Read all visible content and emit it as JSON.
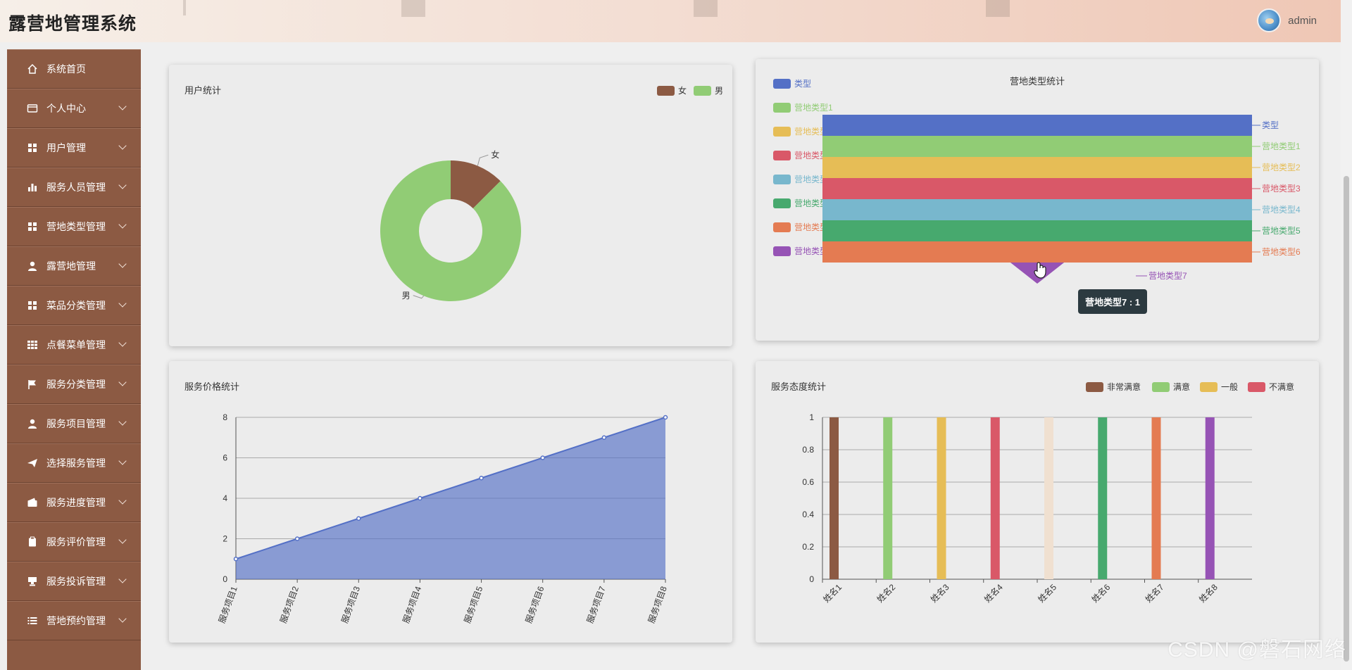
{
  "app": {
    "title": "露营地管理系统",
    "username": "admin"
  },
  "sidebar": {
    "items": [
      {
        "label": "系统首页",
        "icon": "home-icon",
        "has_submenu": false
      },
      {
        "label": "个人中心",
        "icon": "id-card-icon",
        "has_submenu": true
      },
      {
        "label": "用户管理",
        "icon": "grid-icon",
        "has_submenu": true
      },
      {
        "label": "服务人员管理",
        "icon": "bar-chart-icon",
        "has_submenu": true
      },
      {
        "label": "营地类型管理",
        "icon": "grid-icon",
        "has_submenu": true
      },
      {
        "label": "露营地管理",
        "icon": "user-icon",
        "has_submenu": true
      },
      {
        "label": "菜品分类管理",
        "icon": "grid-icon",
        "has_submenu": true
      },
      {
        "label": "点餐菜单管理",
        "icon": "grid-nine-icon",
        "has_submenu": true
      },
      {
        "label": "服务分类管理",
        "icon": "flag-icon",
        "has_submenu": true
      },
      {
        "label": "服务项目管理",
        "icon": "user-icon",
        "has_submenu": true
      },
      {
        "label": "选择服务管理",
        "icon": "paper-plane-icon",
        "has_submenu": true
      },
      {
        "label": "服务进度管理",
        "icon": "wallet-icon",
        "has_submenu": true
      },
      {
        "label": "服务评价管理",
        "icon": "clipboard-icon",
        "has_submenu": true
      },
      {
        "label": "服务投诉管理",
        "icon": "stamp-icon",
        "has_submenu": true
      },
      {
        "label": "营地预约管理",
        "icon": "list-icon",
        "has_submenu": true
      }
    ]
  },
  "colors": {
    "sidebar_bg": "#8c5a43",
    "palette": [
      "#5470c6",
      "#91cc75",
      "#e6bd56",
      "#d95868",
      "#78b7cd",
      "#47a96e",
      "#e47b52",
      "#9653b5",
      "#f0e0d0"
    ]
  },
  "tooltip": {
    "text": "营地类型7 : 1"
  },
  "watermark": "CSDN @磐石网络",
  "chart_data": [
    {
      "type": "pie",
      "title": "用户统计",
      "donut": true,
      "legend": {
        "position": "top-right",
        "entries": [
          "女",
          "男"
        ]
      },
      "slices": [
        {
          "name": "女",
          "value": 1,
          "color": "#8c5a43"
        },
        {
          "name": "男",
          "value": 7,
          "color": "#91cc75"
        }
      ]
    },
    {
      "type": "funnel",
      "title": "营地类型统计",
      "legend": {
        "position": "left",
        "entries": [
          "类型",
          "营地类型1",
          "营地类型2",
          "营地类型3",
          "营地类型4",
          "营地类型5",
          "营地类型6",
          "营地类型7"
        ]
      },
      "series": [
        {
          "name": "类型",
          "value": 8,
          "color": "#5470c6"
        },
        {
          "name": "营地类型1",
          "value": 8,
          "color": "#91cc75"
        },
        {
          "name": "营地类型2",
          "value": 8,
          "color": "#e6bd56"
        },
        {
          "name": "营地类型3",
          "value": 8,
          "color": "#d95868"
        },
        {
          "name": "营地类型4",
          "value": 8,
          "color": "#78b7cd"
        },
        {
          "name": "营地类型5",
          "value": 8,
          "color": "#47a96e"
        },
        {
          "name": "营地类型6",
          "value": 8,
          "color": "#e47b52"
        },
        {
          "name": "营地类型7",
          "value": 1,
          "color": "#9653b5"
        }
      ]
    },
    {
      "type": "area",
      "title": "服务价格统计",
      "categories": [
        "服务项目1",
        "服务项目2",
        "服务项目3",
        "服务项目4",
        "服务项目5",
        "服务项目6",
        "服务项目7",
        "服务项目8"
      ],
      "values": [
        1,
        2,
        3,
        4,
        5,
        6,
        7,
        8
      ],
      "ylim": [
        0,
        8
      ],
      "yticks": [
        0,
        2,
        4,
        6,
        8
      ],
      "grid": true,
      "color": "#5470c6"
    },
    {
      "type": "bar",
      "title": "服务态度统计",
      "categories": [
        "姓名1",
        "姓名2",
        "姓名3",
        "姓名4",
        "姓名5",
        "姓名6",
        "姓名7",
        "姓名8"
      ],
      "values": [
        1,
        1,
        1,
        1,
        1,
        1,
        1,
        1
      ],
      "bar_colors": [
        "#8c5a43",
        "#91cc75",
        "#e6bd56",
        "#d95868",
        "#f0e0d0",
        "#47a96e",
        "#e47b52",
        "#9653b5"
      ],
      "ylim": [
        0,
        1
      ],
      "yticks": [
        0,
        0.2,
        0.4,
        0.6,
        0.8,
        1
      ],
      "grid": true,
      "legend": {
        "position": "top-right",
        "entries": [
          {
            "name": "非常满意",
            "color": "#8c5a43"
          },
          {
            "name": "满意",
            "color": "#91cc75"
          },
          {
            "name": "一般",
            "color": "#e6bd56"
          },
          {
            "name": "不满意",
            "color": "#d95868"
          }
        ]
      }
    }
  ]
}
